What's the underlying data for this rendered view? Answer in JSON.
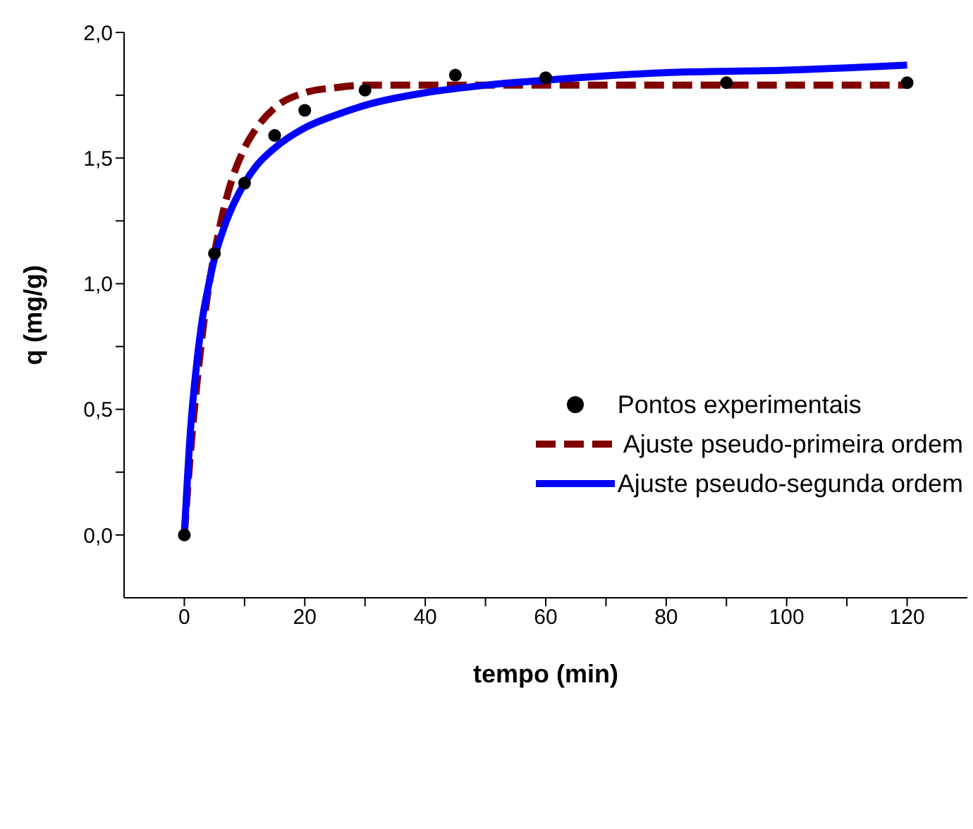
{
  "chart_data": {
    "type": "scatter",
    "xlabel": "tempo (min)",
    "ylabel": "q (mg/g)",
    "xlim": [
      -10,
      130
    ],
    "ylim": [
      -0.25,
      2.0
    ],
    "xticks": [
      {
        "value": 0,
        "label": "0"
      },
      {
        "value": 10,
        "label": null
      },
      {
        "value": 20,
        "label": "20"
      },
      {
        "value": 30,
        "label": null
      },
      {
        "value": 40,
        "label": "40"
      },
      {
        "value": 50,
        "label": null
      },
      {
        "value": 60,
        "label": "60"
      },
      {
        "value": 70,
        "label": null
      },
      {
        "value": 80,
        "label": "80"
      },
      {
        "value": 90,
        "label": null
      },
      {
        "value": 100,
        "label": "100"
      },
      {
        "value": 110,
        "label": null
      },
      {
        "value": 120,
        "label": "120"
      }
    ],
    "yticks": [
      {
        "value": 0,
        "label": "0,0"
      },
      {
        "value": 0.25,
        "label": null
      },
      {
        "value": 0.5,
        "label": "0,5"
      },
      {
        "value": 0.75,
        "label": null
      },
      {
        "value": 1.0,
        "label": "1,0"
      },
      {
        "value": 1.25,
        "label": null
      },
      {
        "value": 1.5,
        "label": "1,5"
      },
      {
        "value": 1.75,
        "label": null
      },
      {
        "value": 2.0,
        "label": "2,0"
      }
    ],
    "grid": false,
    "legend": "center right",
    "series": [
      {
        "name": "Pontos experimentais",
        "marker": "circle",
        "color": "#000000",
        "x": [
          0,
          5,
          10,
          15,
          20,
          30,
          45,
          60,
          90,
          120
        ],
        "values": [
          0,
          1.12,
          1.4,
          1.59,
          1.69,
          1.77,
          1.83,
          1.82,
          1.8,
          1.8
        ]
      },
      {
        "name": " Ajuste pseudo-primeira ordem",
        "type": "line",
        "line_style": "dashed",
        "marker": "none",
        "color": "#800000",
        "x": [
          0,
          1,
          2,
          3,
          4,
          5,
          7,
          10,
          12,
          15,
          20,
          25,
          30,
          40,
          60,
          90,
          120
        ],
        "values": [
          0,
          0.32,
          0.58,
          0.8,
          0.98,
          1.12,
          1.34,
          1.54,
          1.62,
          1.7,
          1.76,
          1.78,
          1.79,
          1.79,
          1.79,
          1.79,
          1.79
        ]
      },
      {
        "name": "Ajuste pseudo-segunda ordem",
        "type": "line",
        "line_style": "solid",
        "marker": "none",
        "color": "#0000ff",
        "x": [
          0,
          1,
          2,
          3,
          4,
          5,
          7,
          10,
          12,
          15,
          20,
          25,
          30,
          40,
          50,
          60,
          80,
          100,
          120
        ],
        "values": [
          0,
          0.41,
          0.67,
          0.86,
          0.99,
          1.1,
          1.25,
          1.4,
          1.47,
          1.54,
          1.62,
          1.67,
          1.71,
          1.76,
          1.79,
          1.81,
          1.84,
          1.85,
          1.87
        ]
      }
    ]
  }
}
